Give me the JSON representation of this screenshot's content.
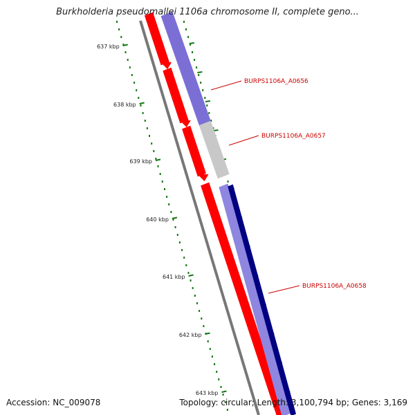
{
  "title": "Burkholderia pseudomallei 1106a chromosome II, complete geno...",
  "footer": {
    "accession": "Accession: NC_009078",
    "summary": "Topology: circular; Length: 3,100,794 bp; Genes: 3,169"
  },
  "colors": {
    "backbone": "#777777",
    "forward_gene": "#ff0000",
    "forward_track_highlight": "#7b6fd6",
    "grey_track": "#c8c8c8",
    "reverse_track": "#000080",
    "tick": "#117711",
    "label": "#cc0000"
  },
  "tick_labels": [
    "637 kbp",
    "638 kbp",
    "639 kbp",
    "640 kbp",
    "641 kbp",
    "642 kbp",
    "643 kbp"
  ],
  "gene_labels": [
    "BURPS1106A_A0656",
    "BURPS1106A_A0657",
    "BURPS1106A_A0658"
  ]
}
